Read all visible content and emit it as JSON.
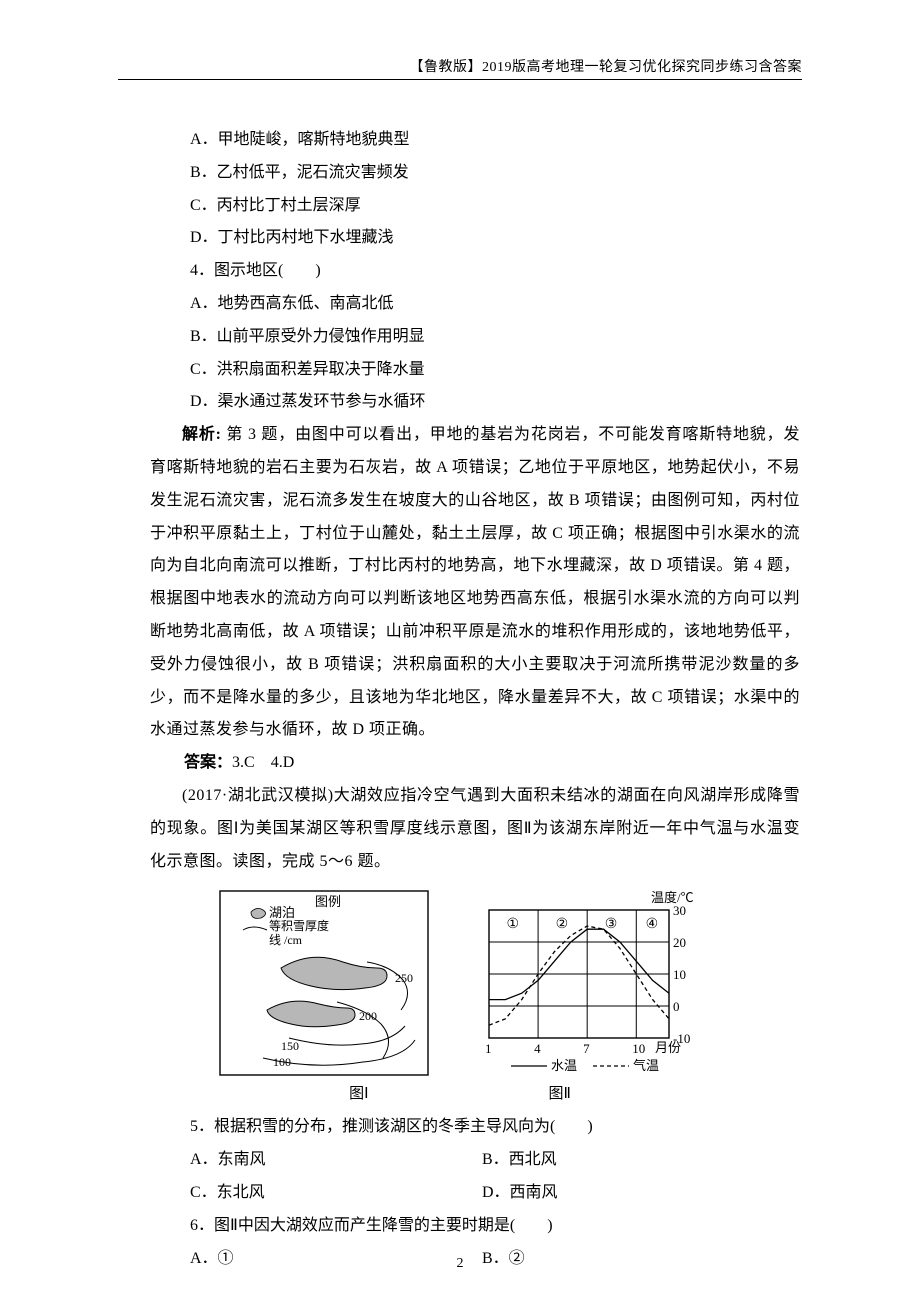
{
  "header": "【鲁教版】2019版高考地理一轮复习优化探究同步练习含答案",
  "q3": {
    "A": "A．甲地陡峻，喀斯特地貌典型",
    "B": "B．乙村低平，泥石流灾害频发",
    "C": "C．丙村比丁村土层深厚",
    "D": "D．丁村比丙村地下水埋藏浅"
  },
  "q4": {
    "stem": "4．图示地区(　　)",
    "A": "A．地势西高东低、南高北低",
    "B": "B．山前平原受外力侵蚀作用明显",
    "C": "C．洪积扇面积差异取决于降水量",
    "D": "D．渠水通过蒸发环节参与水循环"
  },
  "explain34": "解析: 第 3 题，由图中可以看出，甲地的基岩为花岗岩，不可能发育喀斯特地貌，发育喀斯特地貌的岩石主要为石灰岩，故 A 项错误；乙地位于平原地区，地势起伏小，不易发生泥石流灾害，泥石流多发生在坡度大的山谷地区，故 B 项错误；由图例可知，丙村位于冲积平原黏土上，丁村位于山麓处，黏土土层厚，故 C 项正确；根据图中引水渠水的流向为自北向南流可以推断，丁村比丙村的地势高，地下水埋藏深，故 D 项错误。第 4 题，根据图中地表水的流动方向可以判断该地区地势西高东低，根据引水渠水流的方向可以判断地势北高南低，故 A 项错误；山前冲积平原是流水的堆积作用形成的，该地地势低平，受外力侵蚀很小，故 B 项错误；洪积扇面积的大小主要取决于河流所携带泥沙数量的多少，而不是降水量的多少，且该地为华北地区，降水量差异不大，故 C 项错误；水渠中的水通过蒸发参与水循环，故 D 项正确。",
  "answers34_label": "答案：",
  "answers34_vals": "3.C　4.D",
  "stem56": "(2017·湖北武汉模拟)大湖效应指冷空气遇到大面积未结冰的湖面在向风湖岸形成降雪的现象。图Ⅰ为美国某湖区等积雪厚度线示意图，图Ⅱ为该湖东岸附近一年中气温与水温变化示意图。读图，完成 5～6 题。",
  "fig1": {
    "legend_title": "图例",
    "legend_lake": "湖泊",
    "legend_contour_l1": "等积雪厚度",
    "legend_contour_l2": "线 /cm",
    "contours": [
      "250",
      "200",
      "150",
      "100"
    ],
    "caption": "图Ⅰ",
    "lake_fill": "#b7b7b7",
    "line_color": "#000000",
    "background": "#ffffff"
  },
  "fig2": {
    "yaxis_title": "温度/℃",
    "yticks": [
      30,
      20,
      10,
      0,
      -10
    ],
    "xlabel": "月份",
    "xticks": [
      1,
      4,
      7,
      10
    ],
    "regions": [
      "①",
      "②",
      "③",
      "④"
    ],
    "legend_water": "水温",
    "legend_air": "气温",
    "caption": "图Ⅱ",
    "grid_color": "#000000",
    "water_series": [
      {
        "x": 1,
        "y": 2
      },
      {
        "x": 2,
        "y": 2
      },
      {
        "x": 3,
        "y": 4
      },
      {
        "x": 4,
        "y": 8
      },
      {
        "x": 5,
        "y": 14
      },
      {
        "x": 6,
        "y": 20
      },
      {
        "x": 7,
        "y": 24
      },
      {
        "x": 8,
        "y": 24
      },
      {
        "x": 9,
        "y": 20
      },
      {
        "x": 10,
        "y": 14
      },
      {
        "x": 11,
        "y": 8
      },
      {
        "x": 12,
        "y": 4
      }
    ],
    "air_series": [
      {
        "x": 1,
        "y": -6
      },
      {
        "x": 2,
        "y": -4
      },
      {
        "x": 3,
        "y": 2
      },
      {
        "x": 4,
        "y": 10
      },
      {
        "x": 5,
        "y": 17
      },
      {
        "x": 6,
        "y": 22
      },
      {
        "x": 7,
        "y": 25
      },
      {
        "x": 8,
        "y": 24
      },
      {
        "x": 9,
        "y": 18
      },
      {
        "x": 10,
        "y": 10
      },
      {
        "x": 11,
        "y": 2
      },
      {
        "x": 12,
        "y": -4
      }
    ],
    "water_style": "solid",
    "air_style": "dashed",
    "line_width": 1.3,
    "background": "#ffffff"
  },
  "q5": {
    "stem": "5．根据积雪的分布，推测该湖区的冬季主导风向为(　　)",
    "A": "A．东南风",
    "B": "B．西北风",
    "C": "C．东北风",
    "D": "D．西南风"
  },
  "q6": {
    "stem": "6．图Ⅱ中因大湖效应而产生降雪的主要时期是(　　)",
    "A": "A．①",
    "B": "B．②"
  },
  "pagenum": "2"
}
